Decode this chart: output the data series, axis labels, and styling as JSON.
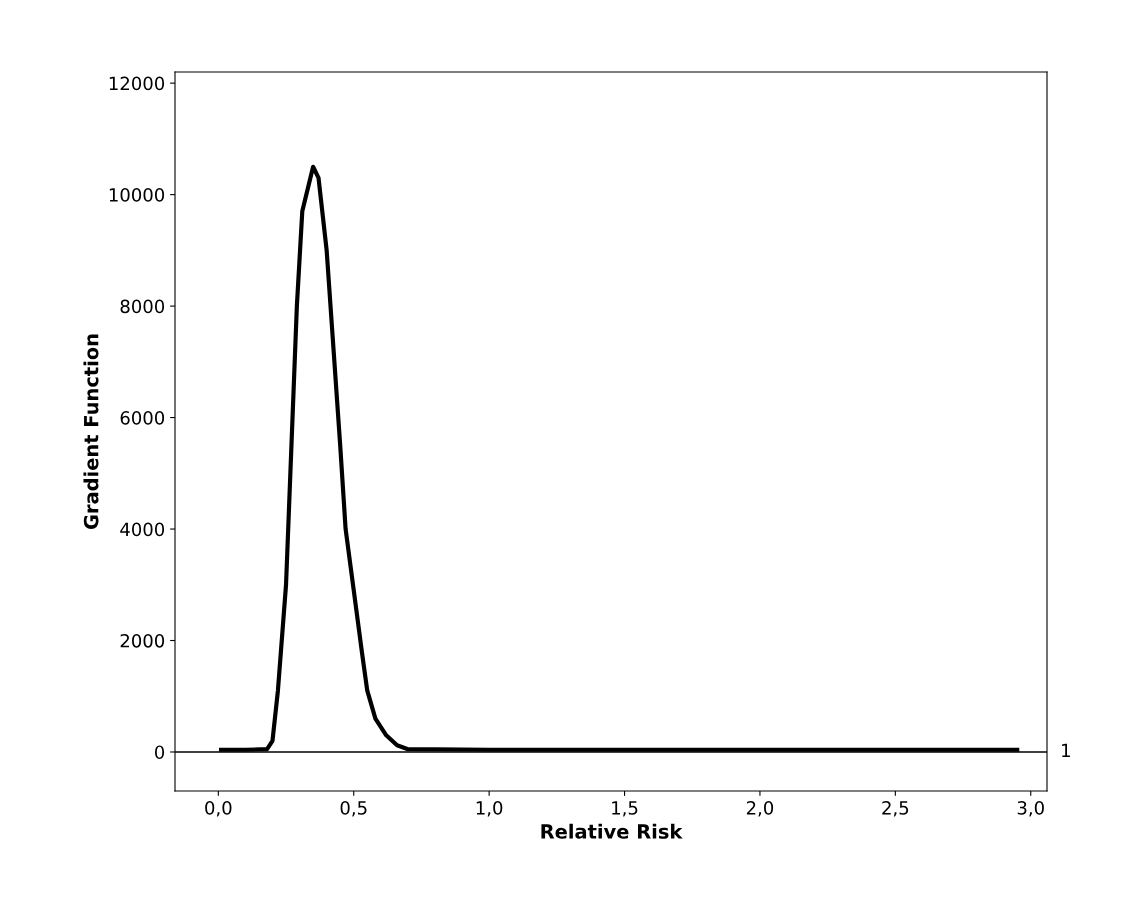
{
  "chart_data": {
    "type": "line",
    "xlabel": "Relative Risk",
    "ylabel": "Gradient Function",
    "series": [
      {
        "color": "#000000",
        "x": [
          0.01,
          0.1,
          0.18,
          0.2,
          0.22,
          0.25,
          0.27,
          0.29,
          0.31,
          0.35,
          0.37,
          0.4,
          0.42,
          0.45,
          0.47,
          0.5,
          0.53,
          0.55,
          0.58,
          0.62,
          0.66,
          0.7,
          1.0,
          1.5,
          2.0,
          2.5,
          2.95
        ],
        "values": [
          40,
          40,
          50,
          200,
          1100,
          3000,
          5500,
          8000,
          9700,
          10500,
          10300,
          9000,
          7600,
          5500,
          4000,
          2900,
          1800,
          1100,
          600,
          300,
          120,
          50,
          40,
          40,
          40,
          40,
          40
        ]
      }
    ],
    "xlim": [
      -0.16,
      3.06
    ],
    "ylim": [
      -700,
      12200
    ],
    "xticks": [
      {
        "value": 0,
        "label": "0,0"
      },
      {
        "value": 0.5,
        "label": "0,5"
      },
      {
        "value": 1,
        "label": "1,0"
      },
      {
        "value": 1.5,
        "label": "1,5"
      },
      {
        "value": 2,
        "label": "2,0"
      },
      {
        "value": 2.5,
        "label": "2,5"
      },
      {
        "value": 3,
        "label": "3,0"
      }
    ],
    "yticks": [
      0,
      2000,
      4000,
      6000,
      8000,
      10000,
      12000
    ],
    "ref_lines": [
      {
        "axis": "y",
        "value": 0,
        "color": "#000000"
      }
    ],
    "annotations": [
      "1"
    ],
    "grid": false,
    "marker": "none",
    "line_style": "solid"
  }
}
